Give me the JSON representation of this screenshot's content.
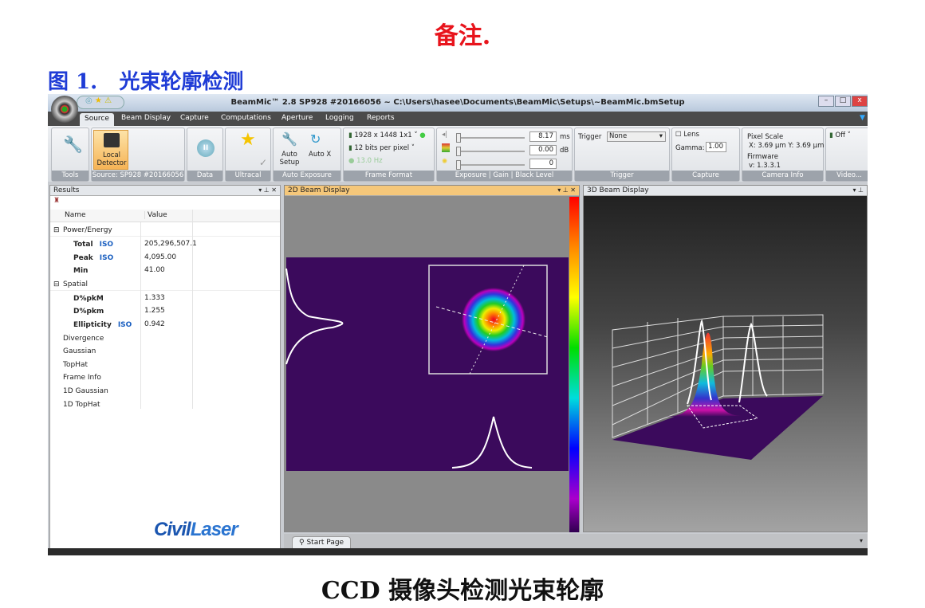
{
  "doc": {
    "note": "备注.",
    "figure_label": "图 1.   光束轮廓检测",
    "caption": "CCD  摄像头检测光束轮廓",
    "logo": "CivilLaser"
  },
  "app": {
    "title": "BeamMic™ 2.8 SP928 #20166056 ~ C:\\Users\\hasee\\Documents\\BeamMic\\Setups\\~BeamMic.bmSetup",
    "tabs": [
      "Source",
      "Beam Display",
      "Capture",
      "Computations",
      "Aperture",
      "Logging",
      "Reports"
    ],
    "active_tab": "Source",
    "ribbon": {
      "groups": [
        "Tools",
        "Source: SP928 #20166056",
        "Data",
        "Ultracal",
        "Auto Exposure",
        "Frame Format",
        "Exposure | Gain | Black Level",
        "Trigger",
        "Capture",
        "Camera Info",
        "Video..."
      ],
      "local_detector": "Local Detector",
      "auto_setup": "Auto Setup",
      "auto_x": "Auto X",
      "resolution": "1928 x 1448 1x1",
      "bits": "12 bits per pixel",
      "rate": "13.0 Hz",
      "exposure": "8.17",
      "exposure_unit": "ms",
      "gain": "0.00",
      "gain_unit": "dB",
      "black_level": "0",
      "trigger_label": "Trigger",
      "trigger_value": "None",
      "lens": "Lens",
      "gamma_label": "Gamma:",
      "gamma": "1.00",
      "pixel_scale": "Pixel Scale",
      "pixel_xy": "X: 3.69 µm  Y: 3.69 µm",
      "firmware": "Firmware",
      "firmware_v": "v: 1.3.3.1",
      "video": "Off"
    },
    "results": {
      "title": "Results",
      "col_name": "Name",
      "col_value": "Value",
      "rows": [
        {
          "name": "Power/Energy",
          "type": "group"
        },
        {
          "name": "Total",
          "value": "205,296,507.1",
          "iso": "ISO"
        },
        {
          "name": "Peak",
          "value": "4,095.00",
          "iso": "ISO"
        },
        {
          "name": "Min",
          "value": "41.00"
        },
        {
          "name": "Spatial",
          "type": "group"
        },
        {
          "name": "D%pkM",
          "value": "1.333"
        },
        {
          "name": "D%pkm",
          "value": "1.255"
        },
        {
          "name": "Ellipticity",
          "value": "0.942",
          "iso": "ISO"
        },
        {
          "name": "Divergence",
          "type": "sub"
        },
        {
          "name": "Gaussian",
          "type": "sub"
        },
        {
          "name": "TopHat",
          "type": "sub"
        },
        {
          "name": "Frame Info",
          "type": "sub"
        },
        {
          "name": "1D Gaussian",
          "type": "sub"
        },
        {
          "name": "1D TopHat",
          "type": "sub"
        }
      ]
    },
    "panel_2d": "2D Beam Display",
    "panel_3d": "3D Beam Display",
    "start_page": "Start Page",
    "colors": {
      "beam_bg": "#3b0a5c",
      "accent_orange": "#f5c77a"
    }
  }
}
